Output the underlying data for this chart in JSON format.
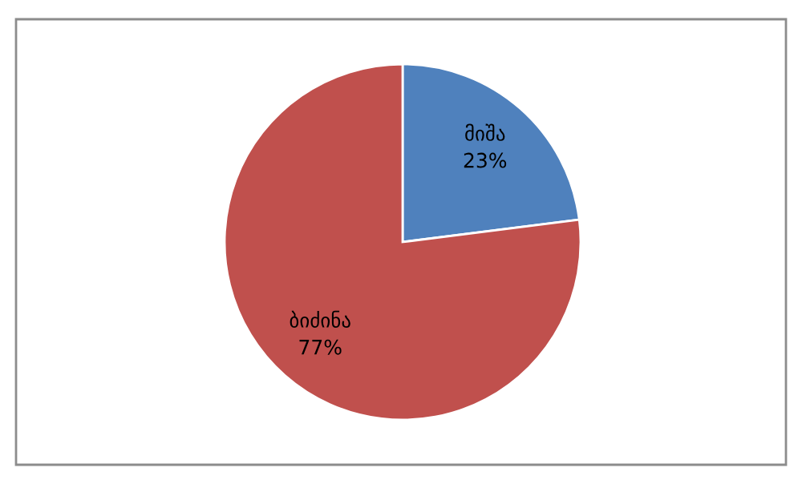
{
  "chart_data": {
    "type": "pie",
    "categories": [
      "მიშა",
      "ბიძინა"
    ],
    "values": [
      23,
      77
    ],
    "value_labels": [
      "23%",
      "77%"
    ],
    "colors": [
      "#4f81bd",
      "#c0504d"
    ],
    "legend": false
  }
}
